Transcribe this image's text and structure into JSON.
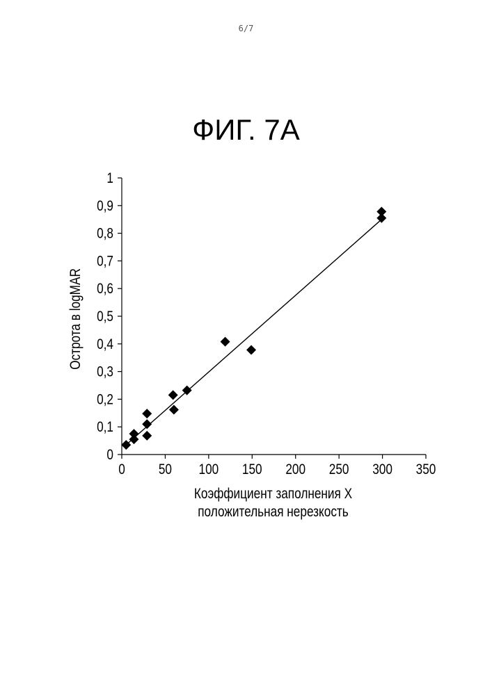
{
  "page": {
    "page_number": "6/7",
    "figure_label": "ФИГ. 7А"
  },
  "chart_data": {
    "type": "scatter",
    "title": "",
    "xlabel_lines": [
      "Коэффициент заполнения X",
      "положительная нерезкость"
    ],
    "ylabel": "Острота в logMAR",
    "xlim": [
      0,
      350
    ],
    "ylim": [
      0,
      1
    ],
    "x_ticks": [
      0,
      50,
      100,
      150,
      200,
      250,
      300,
      350
    ],
    "x_tick_labels": [
      "0",
      "50",
      "100",
      "150",
      "200",
      "250",
      "300",
      "350"
    ],
    "y_ticks": [
      0,
      0.1,
      0.2,
      0.3,
      0.4,
      0.5,
      0.6,
      0.7,
      0.8,
      0.9,
      1
    ],
    "y_tick_labels": [
      "0",
      "0,1",
      "0,2",
      "0,3",
      "0,4",
      "0,5",
      "0,6",
      "0,7",
      "0,8",
      "0,9",
      "1"
    ],
    "grid": false,
    "legend": "none",
    "marker": "diamond",
    "series": [
      {
        "points": [
          {
            "x": 5,
            "y": 0.035
          },
          {
            "x": 14,
            "y": 0.075
          },
          {
            "x": 14,
            "y": 0.055
          },
          {
            "x": 29,
            "y": 0.148
          },
          {
            "x": 29,
            "y": 0.11
          },
          {
            "x": 29,
            "y": 0.068
          },
          {
            "x": 59,
            "y": 0.215
          },
          {
            "x": 60,
            "y": 0.162
          },
          {
            "x": 75,
            "y": 0.232
          },
          {
            "x": 119,
            "y": 0.408
          },
          {
            "x": 149,
            "y": 0.378
          },
          {
            "x": 299,
            "y": 0.878
          },
          {
            "x": 299,
            "y": 0.855
          }
        ],
        "trendline": {
          "x": [
            5,
            299
          ],
          "y": [
            0.035,
            0.85
          ]
        }
      }
    ],
    "colors": {
      "marker": "#000000",
      "line": "#000000",
      "axis": "#000000"
    }
  }
}
